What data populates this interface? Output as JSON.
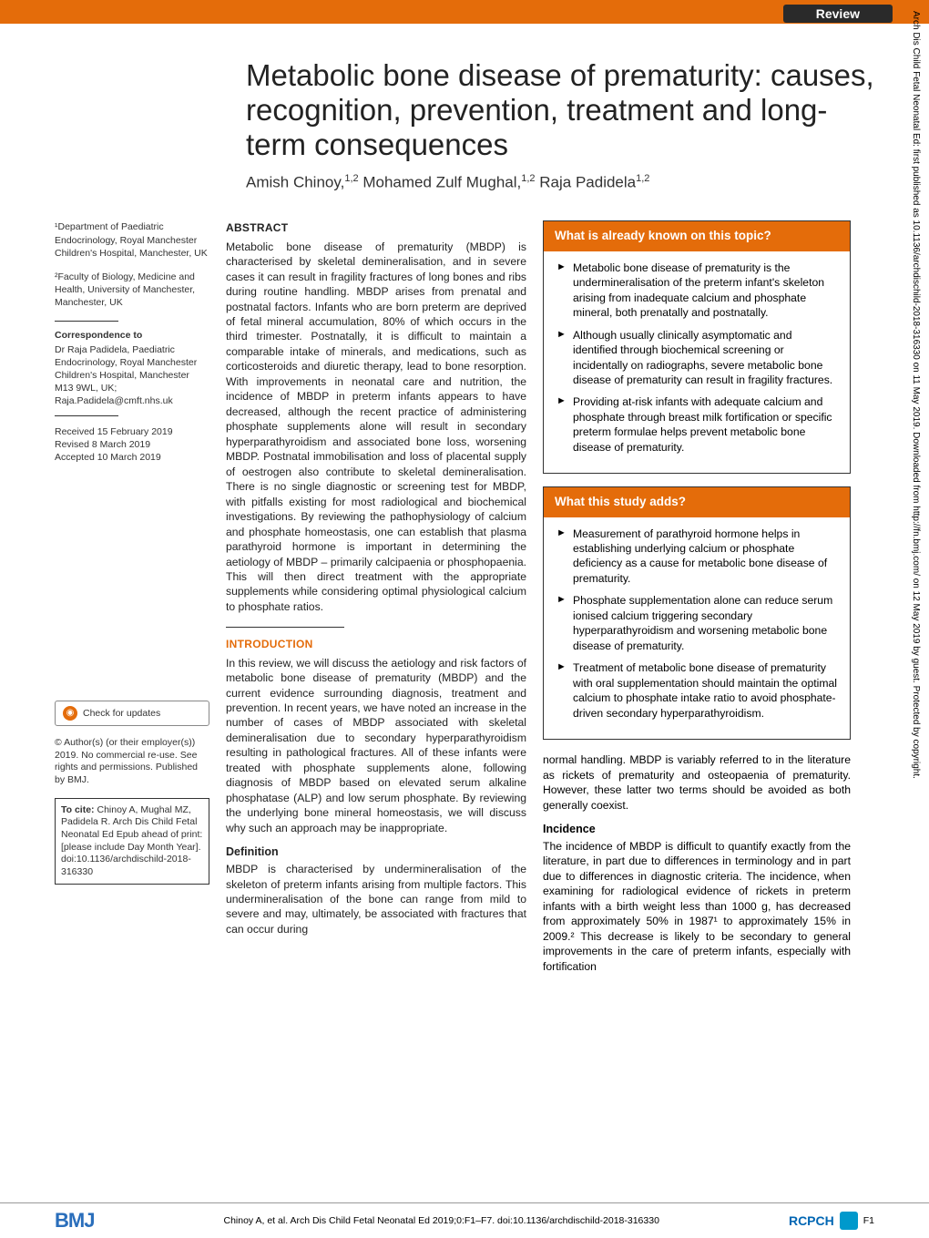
{
  "header": {
    "review_badge": "Review",
    "sidebar_text": "Arch Dis Child Fetal Neonatal Ed: first published as 10.1136/archdischild-2018-316330 on 11 May 2019. Downloaded from http://fn.bmj.com/ on 12 May 2019 by guest. Protected by copyright."
  },
  "title": "Metabolic bone disease of prematurity: causes, recognition, prevention, treatment and long-term consequences",
  "authors_html": "Amish Chinoy,<sup>1,2</sup> Mohamed Zulf Mughal,<sup>1,2</sup> Raja Padidela<sup>1,2</sup>",
  "affiliations": {
    "a1": "¹Department of Paediatric Endocrinology, Royal Manchester Children's Hospital, Manchester, UK",
    "a2": "²Faculty of Biology, Medicine and Health, University of Manchester, Manchester, UK"
  },
  "correspondence": {
    "title": "Correspondence to",
    "body": "Dr Raja Padidela, Paediatric Endocrinology, Royal Manchester Children's Hospital, Manchester M13 9WL, UK; Raja.Padidela@cmft.nhs.uk"
  },
  "dates": {
    "received": "Received 15 February 2019",
    "revised": "Revised 8 March 2019",
    "accepted": "Accepted 10 March 2019"
  },
  "check_updates": "Check for updates",
  "copyright": "© Author(s) (or their employer(s)) 2019. No commercial re-use. See rights and permissions. Published by BMJ.",
  "cite": {
    "label": "To cite:",
    "body": "Chinoy A, Mughal MZ, Padidela R. Arch Dis Child Fetal Neonatal Ed Epub ahead of print: [please include Day Month Year]. doi:10.1136/archdischild-2018-316330"
  },
  "abstract": {
    "heading": "ABSTRACT",
    "body": "Metabolic bone disease of prematurity (MBDP) is characterised by skeletal demineralisation, and in severe cases it can result in fragility fractures of long bones and ribs during routine handling. MBDP arises from prenatal and postnatal factors. Infants who are born preterm are deprived of fetal mineral accumulation, 80% of which occurs in the third trimester. Postnatally, it is difficult to maintain a comparable intake of minerals, and medications, such as corticosteroids and diuretic therapy, lead to bone resorption. With improvements in neonatal care and nutrition, the incidence of MBDP in preterm infants appears to have decreased, although the recent practice of administering phosphate supplements alone will result in secondary hyperparathyroidism and associated bone loss, worsening MBDP. Postnatal immobilisation and loss of placental supply of oestrogen also contribute to skeletal demineralisation. There is no single diagnostic or screening test for MBDP, with pitfalls existing for most radiological and biochemical investigations. By reviewing the pathophysiology of calcium and phosphate homeostasis, one can establish that plasma parathyroid hormone is important in determining the aetiology of MBDP – primarily calcipaenia or phosphopaenia. This will then direct treatment with the appropriate supplements while considering optimal physiological calcium to phosphate ratios."
  },
  "intro": {
    "heading": "INTRODUCTION",
    "body": "In this review, we will discuss the aetiology and risk factors of metabolic bone disease of prematurity (MBDP) and the current evidence surrounding diagnosis, treatment and prevention. In recent years, we have noted an increase in the number of cases of MBDP associated with skeletal demineralisation due to secondary hyperparathyroidism resulting in pathological fractures. All of these infants were treated with phosphate supplements alone, following diagnosis of MBDP based on elevated serum alkaline phosphatase (ALP) and low serum phosphate. By reviewing the underlying bone mineral homeostasis, we will discuss why such an approach may be inappropriate."
  },
  "definition": {
    "heading": "Definition",
    "body": "MBDP is characterised by undermineralisation of the skeleton of preterm infants arising from multiple factors. This undermineralisation of the bone can range from mild to severe and may, ultimately, be associated with fractures that can occur during"
  },
  "box1": {
    "heading": "What is already known on this topic?",
    "items": [
      "Metabolic bone disease of prematurity is the undermineralisation of the preterm infant's skeleton arising from inadequate calcium and phosphate mineral, both prenatally and postnatally.",
      "Although usually clinically asymptomatic and identified through biochemical screening or incidentally on radiographs, severe metabolic bone disease of prematurity can result in fragility fractures.",
      "Providing at-risk infants with adequate calcium and phosphate through breast milk fortification or specific preterm formulae helps prevent metabolic bone disease of prematurity."
    ]
  },
  "box2": {
    "heading": "What this study adds?",
    "items": [
      "Measurement of parathyroid hormone helps in establishing underlying calcium or phosphate deficiency as a cause for metabolic bone disease of prematurity.",
      "Phosphate supplementation alone can reduce serum ionised calcium triggering secondary hyperparathyroidism and worsening metabolic bone disease of prematurity.",
      "Treatment of metabolic bone disease of prematurity with oral supplementation should maintain the optimal calcium to phosphate intake ratio to avoid phosphate-driven secondary hyperparathyroidism."
    ]
  },
  "right_text": {
    "p1": "normal handling. MBDP is variably referred to in the literature as rickets of prematurity and osteopaenia of prematurity. However, these latter two terms should be avoided as both generally coexist.",
    "incidence_h": "Incidence",
    "incidence_body": "The incidence of MBDP is difficult to quantify exactly from the literature, in part due to differences in terminology and in part due to differences in diagnostic criteria. The incidence, when examining for radiological evidence of rickets in preterm infants with a birth weight less than 1000 g, has decreased from approximately 50% in 1987¹ to approximately 15% in 2009.² This decrease is likely to be secondary to general improvements in the care of preterm infants, especially with fortification"
  },
  "footer": {
    "bmj": "BMJ",
    "citation": "Chinoy A, et al. Arch Dis Child Fetal Neonatal Ed 2019;0:F1–F7. doi:10.1136/archdischild-2018-316330",
    "rcpch": "RCPCH",
    "page": "F1"
  }
}
